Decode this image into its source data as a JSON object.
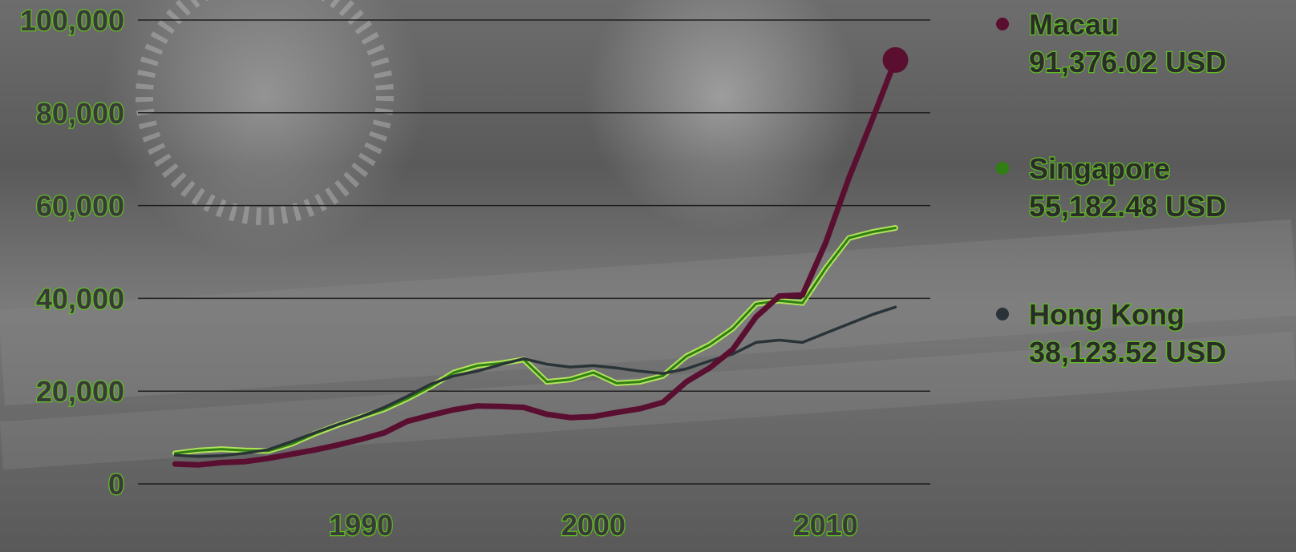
{
  "colors": {
    "macau": "#5a0f30",
    "singapore": "#2f7f12",
    "singapore_glow": "#b9f05a",
    "hong_kong": "#2a3338",
    "gridline": "#1f1f1f",
    "label_fill": "#3a3a3a",
    "label_outline": "#5fbf1f"
  },
  "chart_data": {
    "type": "line",
    "title": "",
    "xlabel": "",
    "ylabel": "",
    "xlim": [
      1980.4,
      2014.5
    ],
    "ylim": [
      0,
      100000
    ],
    "grid": "horizontal",
    "legend_position": "right",
    "x_ticks": [
      {
        "value": 1990,
        "label": "1990"
      },
      {
        "value": 2000,
        "label": "2000"
      },
      {
        "value": 2010,
        "label": "2010"
      }
    ],
    "y_ticks": [
      {
        "value": 0,
        "label": "0"
      },
      {
        "value": 20000,
        "label": "20,000"
      },
      {
        "value": 40000,
        "label": "40,000"
      },
      {
        "value": 60000,
        "label": "60,000"
      },
      {
        "value": 80000,
        "label": "80,000"
      },
      {
        "value": 100000,
        "label": "100,000"
      }
    ],
    "x": [
      1982,
      1983,
      1984,
      1985,
      1986,
      1987,
      1988,
      1989,
      1990,
      1991,
      1992,
      1993,
      1994,
      1995,
      1996,
      1997,
      1998,
      1999,
      2000,
      2001,
      2002,
      2003,
      2004,
      2005,
      2006,
      2007,
      2008,
      2009,
      2010,
      2011,
      2012,
      2013
    ],
    "series": [
      {
        "key": "macau",
        "name": "Macau",
        "value_label": "91,376.02 USD",
        "values": [
          4300,
          4100,
          4600,
          4800,
          5500,
          6400,
          7300,
          8400,
          9600,
          11000,
          13500,
          14800,
          16000,
          16800,
          16700,
          16500,
          15000,
          14300,
          14500,
          15400,
          16200,
          17600,
          22000,
          25000,
          29000,
          36000,
          40500,
          40700,
          52000,
          66000,
          78500,
          91376
        ]
      },
      {
        "key": "singapore",
        "name": "Singapore",
        "value_label": "55,182.48 USD",
        "values": [
          6600,
          7200,
          7500,
          7200,
          7100,
          8600,
          10800,
          12700,
          14400,
          16100,
          18400,
          21000,
          24000,
          25500,
          26000,
          26800,
          22000,
          22500,
          24000,
          21700,
          22000,
          23300,
          27500,
          30000,
          33500,
          38800,
          39500,
          39000,
          46500,
          53000,
          54300,
          55182
        ]
      },
      {
        "key": "hong_kong",
        "name": "Hong Kong",
        "value_label": "38,123.52 USD",
        "values": [
          6200,
          5900,
          6100,
          6600,
          7400,
          9100,
          11000,
          12800,
          14500,
          16500,
          18900,
          21500,
          23300,
          24300,
          25700,
          27000,
          25800,
          25200,
          25500,
          25000,
          24300,
          23800,
          24800,
          26500,
          28000,
          30500,
          31000,
          30500,
          32500,
          34500,
          36500,
          38124
        ]
      }
    ]
  }
}
